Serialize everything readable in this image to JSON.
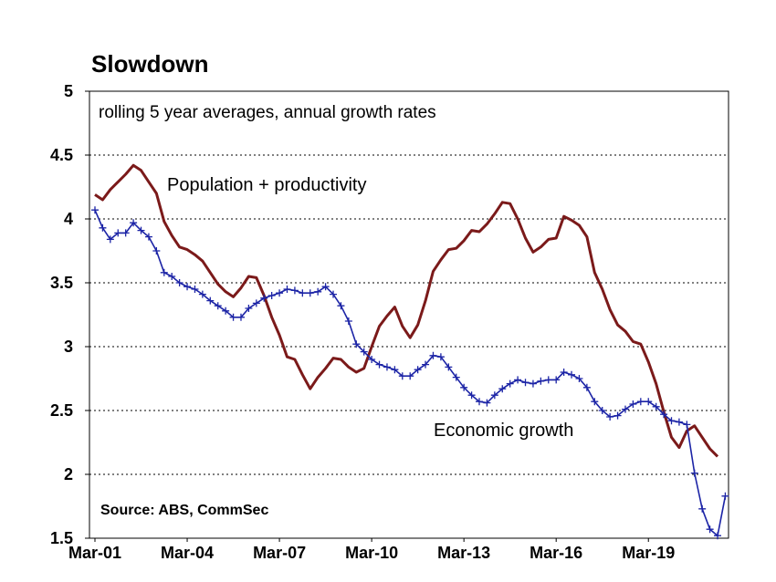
{
  "chart_data": {
    "type": "line",
    "title": "Slowdown",
    "subtitle": "rolling 5 year averages, annual growth rates",
    "source": "Source: ABS, CommSec",
    "xlabel": "",
    "ylabel": "",
    "ylim": [
      1.5,
      5
    ],
    "yticks": [
      "5",
      "4.5",
      "4",
      "3.5",
      "3",
      "2.5",
      "2",
      "1.5"
    ],
    "xticks": [
      "Mar-01",
      "Mar-04",
      "Mar-07",
      "Mar-10",
      "Mar-13",
      "Mar-16",
      "Mar-19"
    ],
    "grid": true,
    "x_start": "Mar-01",
    "x_step": "quarter",
    "series": [
      {
        "name": "Population + productivity",
        "color": "#7b1a1a",
        "marker": "none",
        "values": [
          4.19,
          4.15,
          4.23,
          4.29,
          4.35,
          4.42,
          4.38,
          4.29,
          4.2,
          3.98,
          3.87,
          3.78,
          3.76,
          3.72,
          3.67,
          3.58,
          3.49,
          3.43,
          3.39,
          3.46,
          3.55,
          3.54,
          3.4,
          3.23,
          3.09,
          2.92,
          2.9,
          2.78,
          2.67,
          2.76,
          2.83,
          2.91,
          2.9,
          2.84,
          2.8,
          2.83,
          3.0,
          3.16,
          3.24,
          3.31,
          3.16,
          3.07,
          3.17,
          3.36,
          3.59,
          3.68,
          3.76,
          3.77,
          3.83,
          3.91,
          3.9,
          3.96,
          4.04,
          4.13,
          4.12,
          4.0,
          3.85,
          3.74,
          3.78,
          3.84,
          3.85,
          4.02,
          3.99,
          3.95,
          3.86,
          3.58,
          3.45,
          3.29,
          3.17,
          3.12,
          3.04,
          3.02,
          2.88,
          2.71,
          2.49,
          2.29,
          2.21,
          2.34,
          2.38,
          2.29,
          2.2,
          2.14
        ]
      },
      {
        "name": "Economic growth",
        "color": "#1c24a6",
        "marker": "plus",
        "values": [
          4.07,
          3.93,
          3.84,
          3.89,
          3.89,
          3.97,
          3.91,
          3.86,
          3.75,
          3.58,
          3.55,
          3.5,
          3.47,
          3.45,
          3.41,
          3.36,
          3.32,
          3.28,
          3.23,
          3.23,
          3.3,
          3.34,
          3.38,
          3.4,
          3.42,
          3.45,
          3.44,
          3.42,
          3.42,
          3.43,
          3.47,
          3.41,
          3.32,
          3.2,
          3.02,
          2.96,
          2.9,
          2.86,
          2.84,
          2.82,
          2.77,
          2.77,
          2.82,
          2.86,
          2.93,
          2.92,
          2.84,
          2.76,
          2.68,
          2.62,
          2.57,
          2.56,
          2.62,
          2.67,
          2.71,
          2.74,
          2.72,
          2.71,
          2.73,
          2.74,
          2.74,
          2.8,
          2.78,
          2.75,
          2.68,
          2.57,
          2.5,
          2.45,
          2.46,
          2.51,
          2.55,
          2.57,
          2.57,
          2.53,
          2.47,
          2.42,
          2.41,
          2.39,
          2.01,
          1.73,
          1.57,
          1.52,
          1.83
        ]
      }
    ]
  }
}
